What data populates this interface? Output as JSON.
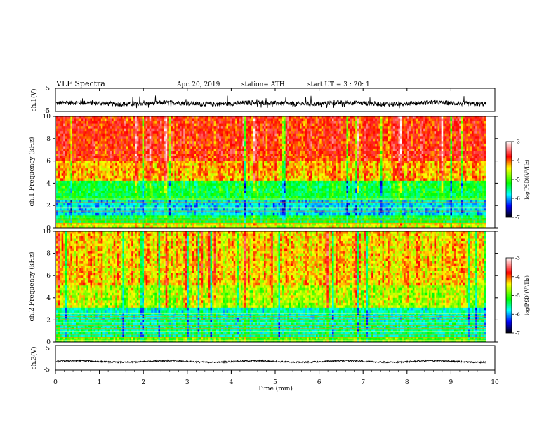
{
  "header": {
    "title": "VLF  Spectra",
    "date": "Apr. 20, 2019",
    "station": "station= ATH",
    "start": "start  UT  =   3  : 20: 1"
  },
  "colorbar": {
    "label": "log(PSD)(V²/Hz)",
    "ticks": [
      "-3",
      "-4",
      "-5",
      "-6",
      "-7"
    ],
    "colors": [
      "#ffffff",
      "#ff0000",
      "#ffff00",
      "#00ff00",
      "#00ffff",
      "#0000ff",
      "#000000"
    ]
  },
  "chart_data": [
    {
      "type": "line",
      "name": "ch1-waveform",
      "ylabel": "ch.1(V)",
      "ylim": [
        -5,
        5
      ],
      "yticks": [
        "5",
        "-5"
      ],
      "xlim": [
        0,
        10
      ],
      "baseline": -1.5,
      "spread": 1.0,
      "spike_max": 3.5
    },
    {
      "type": "heatmap",
      "name": "ch1-spectrogram",
      "ylabel": "ch.1 Frequency (kHz)",
      "ylim": [
        0,
        10
      ],
      "yticks": [
        "0",
        "2",
        "4",
        "6",
        "8",
        "10"
      ],
      "xlim": [
        0,
        9.8
      ],
      "value_units": "log(PSD)(V²/Hz)",
      "value_range": [
        -7,
        -3
      ],
      "bands": [
        {
          "f": [
            0,
            0.4
          ],
          "level": -4.6
        },
        {
          "f": [
            0.4,
            1.0
          ],
          "level": -5.3
        },
        {
          "f": [
            1.0,
            2.5
          ],
          "level": -5.9
        },
        {
          "f": [
            2.5,
            4.3
          ],
          "level": -5.3
        },
        {
          "f": [
            4.3,
            6.0
          ],
          "level": -4.3
        },
        {
          "f": [
            6.0,
            10.0
          ],
          "level": -3.9
        }
      ]
    },
    {
      "type": "heatmap",
      "name": "ch2-spectrogram",
      "ylabel": "ch.2 Frequency (kHz)",
      "ylim": [
        0,
        10
      ],
      "yticks": [
        "0",
        "2",
        "4",
        "6",
        "8",
        "10"
      ],
      "xlim": [
        0,
        9.8
      ],
      "value_units": "log(PSD)(V²/Hz)",
      "value_range": [
        -7,
        -3
      ],
      "bands": [
        {
          "f": [
            0,
            0.5
          ],
          "level": -5.0
        },
        {
          "f": [
            0.5,
            2.0
          ],
          "level": -5.6
        },
        {
          "f": [
            2.0,
            3.0
          ],
          "level": -5.7
        },
        {
          "f": [
            3.0,
            5.0
          ],
          "level": -4.7
        },
        {
          "f": [
            5.0,
            10.0
          ],
          "level": -4.4
        }
      ]
    },
    {
      "type": "line",
      "name": "ch3-waveform",
      "ylabel": "ch.3(V)",
      "ylim": [
        -5,
        5
      ],
      "yticks": [
        "5",
        "-5"
      ],
      "xlim": [
        0,
        10
      ],
      "baseline": -1.5,
      "spread": 0.3,
      "spike_max": 0
    }
  ],
  "xaxis": {
    "label": "Time  (min)",
    "ticks": [
      "0",
      "1",
      "2",
      "3",
      "4",
      "5",
      "6",
      "7",
      "8",
      "9",
      "10"
    ],
    "range": [
      0,
      10
    ]
  }
}
